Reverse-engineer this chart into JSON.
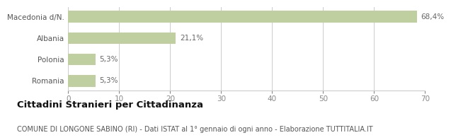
{
  "categories": [
    "Macedonia d/N.",
    "Albania",
    "Polonia",
    "Romania"
  ],
  "values": [
    68.4,
    21.1,
    5.3,
    5.3
  ],
  "labels": [
    "68,4%",
    "21,1%",
    "5,3%",
    "5,3%"
  ],
  "bar_color": "#bfcfa0",
  "xlim": [
    0,
    70
  ],
  "xticks": [
    0,
    10,
    20,
    30,
    40,
    50,
    60,
    70
  ],
  "title": "Cittadini Stranieri per Cittadinanza",
  "subtitle": "COMUNE DI LONGONE SABINO (RI) - Dati ISTAT al 1° gennaio di ogni anno - Elaborazione TUTTITALIA.IT",
  "title_fontsize": 9.5,
  "subtitle_fontsize": 7,
  "label_fontsize": 7.5,
  "tick_fontsize": 7.5,
  "ylabel_fontsize": 7.5,
  "background_color": "#ffffff",
  "grid_color": "#cccccc"
}
